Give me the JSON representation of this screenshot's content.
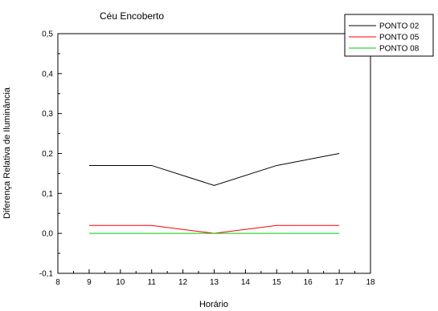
{
  "chart_data": {
    "type": "line",
    "title": "Céu Encoberto",
    "xlabel": "Horário",
    "ylabel": "Diferença Relativa de Iluminância",
    "xlim": [
      8,
      18
    ],
    "ylim": [
      -0.1,
      0.5
    ],
    "x_ticks": [
      "8",
      "9",
      "10",
      "11",
      "12",
      "13",
      "14",
      "15",
      "16",
      "17",
      "18"
    ],
    "y_ticks": [
      "-0,1",
      "0,0",
      "0,1",
      "0,2",
      "0,3",
      "0,4",
      "0,5"
    ],
    "grid": false,
    "legend_position": "top-right",
    "series": [
      {
        "name": "PONTO 02",
        "color": "#000000",
        "x": [
          9,
          11,
          13,
          15,
          17
        ],
        "y": [
          0.17,
          0.17,
          0.12,
          0.17,
          0.2
        ]
      },
      {
        "name": "PONTO 05",
        "color": "#ff0000",
        "x": [
          9,
          11,
          13,
          15,
          17
        ],
        "y": [
          0.02,
          0.02,
          0.0,
          0.02,
          0.02
        ]
      },
      {
        "name": "PONTO 08",
        "color": "#00cc00",
        "x": [
          9,
          11,
          13,
          15,
          17
        ],
        "y": [
          0.0,
          0.0,
          0.0,
          0.0,
          0.0
        ]
      }
    ]
  }
}
